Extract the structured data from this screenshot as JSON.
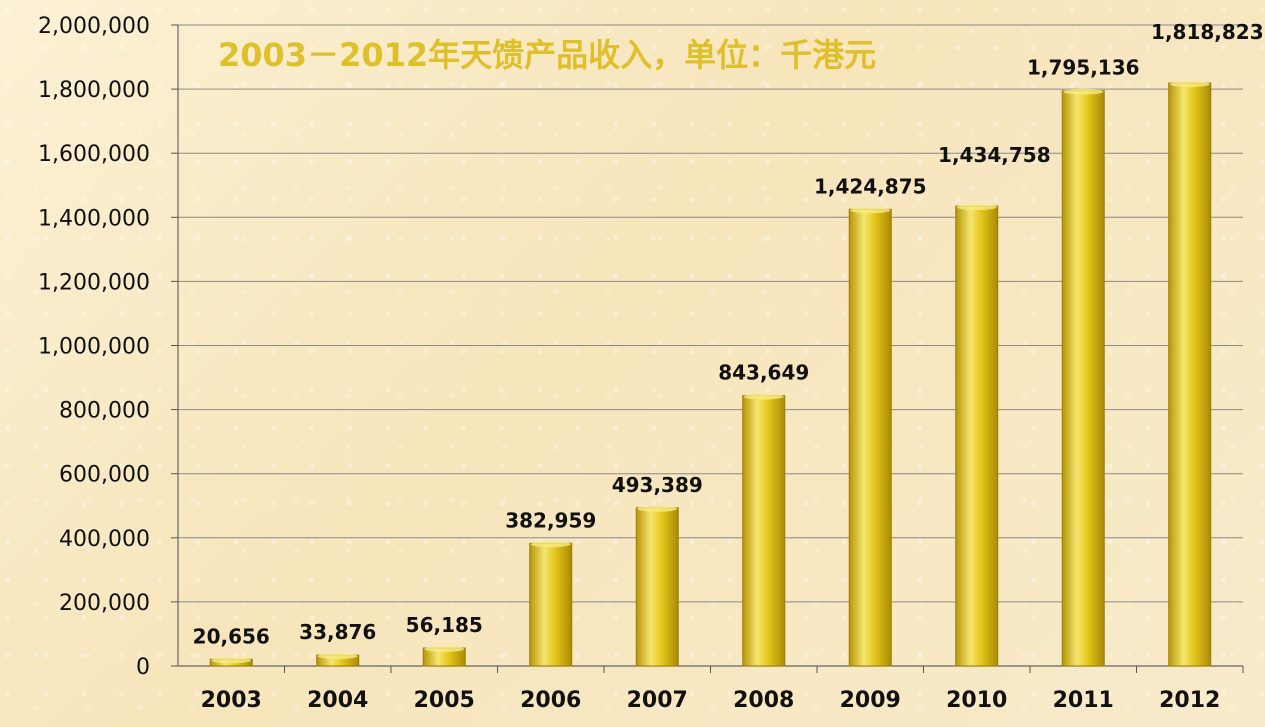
{
  "chart_data": {
    "type": "bar",
    "title": "2003－2012年天馈产品收入，单位：千港元",
    "categories": [
      "2003",
      "2004",
      "2005",
      "2006",
      "2007",
      "2008",
      "2009",
      "2010",
      "2011",
      "2012"
    ],
    "values": [
      20656,
      33876,
      56185,
      382959,
      493389,
      843649,
      1424875,
      1434758,
      1795136,
      1818823
    ],
    "data_labels": [
      "20,656",
      "33,876",
      "56,185",
      "382,959",
      "493,389",
      "843,649",
      "1,424,875",
      "1,434,758",
      "1,795,136",
      "1,818,823"
    ],
    "y_ticks": [
      0,
      200000,
      400000,
      600000,
      800000,
      1000000,
      1200000,
      1400000,
      1600000,
      1800000,
      2000000
    ],
    "y_tick_labels": [
      "0",
      "200,000",
      "400,000",
      "600,000",
      "800,000",
      "1,000,000",
      "1,200,000",
      "1,400,000",
      "1,600,000",
      "1,800,000",
      "2,000,000"
    ],
    "ylim": [
      0,
      2000000
    ],
    "xlabel": "",
    "ylabel": "",
    "grid": true,
    "colors": {
      "bar": "#e6c71b",
      "bar_light": "#f5e670",
      "bar_dark": "#b89607",
      "title": "#e0c02a",
      "grid": "#8a8a8a"
    }
  }
}
